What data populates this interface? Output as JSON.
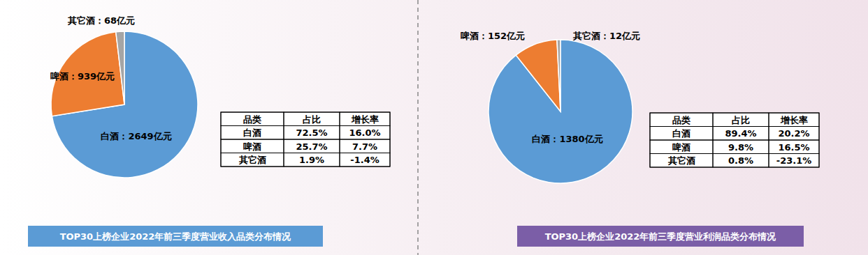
{
  "chart_data": [
    {
      "type": "pie",
      "title": "TOP30上榜企业2022年前三季度营业收入品类分布情况",
      "categories": [
        "白酒",
        "啤酒",
        "其它酒"
      ],
      "values": [
        2649,
        939,
        68
      ],
      "value_labels": [
        "白酒：2649亿元",
        "啤酒：939亿元",
        "其它酒：68亿元"
      ],
      "colors": [
        "#5b9bd5",
        "#ed7d31",
        "#a5a5a5"
      ],
      "data_labels": true,
      "legend": false
    },
    {
      "type": "pie",
      "title": "TOP30上榜企业2022年前三季度营业利润品类分布情况",
      "categories": [
        "白酒",
        "啤酒",
        "其它酒"
      ],
      "values": [
        1380,
        152,
        12
      ],
      "value_labels": [
        "白酒：1380亿元",
        "啤酒：152亿元",
        "其它酒：12亿元"
      ],
      "colors": [
        "#5b9bd5",
        "#ed7d31",
        "#a5a5a5"
      ],
      "data_labels": true,
      "legend": false
    }
  ],
  "tables": [
    {
      "header": [
        "品类",
        "占比",
        "增长率"
      ],
      "rows": [
        [
          "白酒",
          "72.5%",
          "16.0%"
        ],
        [
          "啤酒",
          "25.7%",
          "7.7%"
        ],
        [
          "其它酒",
          "1.9%",
          "-1.4%"
        ]
      ]
    },
    {
      "header": [
        "品类",
        "占比",
        "增长率"
      ],
      "rows": [
        [
          "白酒",
          "89.4%",
          "20.2%"
        ],
        [
          "啤酒",
          "9.8%",
          "16.5%"
        ],
        [
          "其它酒",
          "0.8%",
          "-23.1%"
        ]
      ]
    }
  ]
}
